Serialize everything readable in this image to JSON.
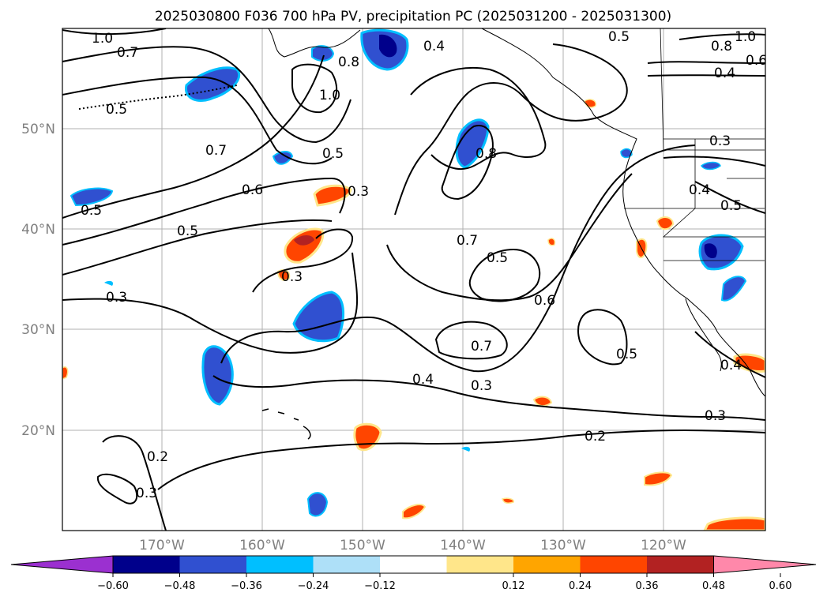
{
  "title": "2025030800 F036 700 hPa PV, precipitation PC (2025031200 - 2025031300)",
  "map": {
    "lat_labels": [
      "50°N",
      "40°N",
      "30°N",
      "20°N"
    ],
    "lon_labels": [
      "170°W",
      "160°W",
      "150°W",
      "140°W",
      "130°W",
      "120°W"
    ],
    "contour_labels": [
      "1.0",
      "0.7",
      "0.5",
      "0.8",
      "1.0",
      "0.4",
      "0.5",
      "0.8",
      "1.0",
      "0.6",
      "0.4",
      "0.7",
      "0.6",
      "0.5",
      "0.5",
      "0.5",
      "0.4",
      "0.5",
      "0.3",
      "0.7",
      "0.5",
      "0.8",
      "0.6",
      "0.3",
      "0.7",
      "0.4",
      "0.3",
      "0.5",
      "0.4",
      "0.3",
      "0.2",
      "0.2",
      "0.3",
      "0.3",
      "0.3"
    ]
  },
  "colorbar": {
    "tick_labels": [
      "−0.60",
      "−0.48",
      "−0.36",
      "−0.24",
      "−0.12",
      "0.12",
      "0.24",
      "0.36",
      "0.48",
      "0.60"
    ],
    "colors": [
      "#9b30d0",
      "#00008b",
      "#3050d0",
      "#00bfff",
      "#aee0f8",
      "#ffffff",
      "#ffe68a",
      "#ffa500",
      "#ff4500",
      "#b22222",
      "#ff88aa"
    ]
  }
}
